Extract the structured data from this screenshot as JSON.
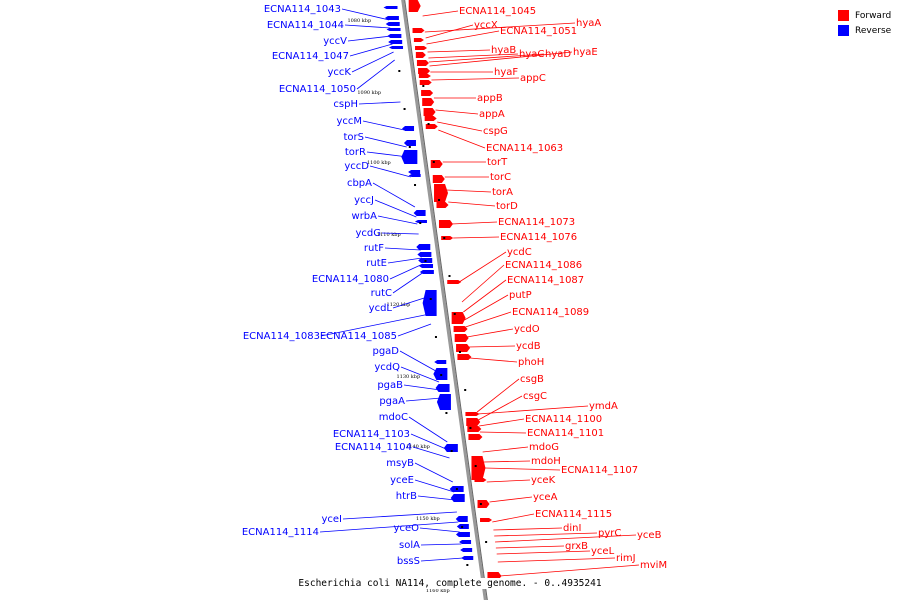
{
  "colors": {
    "forward": "#ff0000",
    "reverse": "#0000ff",
    "backbone": "#999999"
  },
  "legend": [
    {
      "label": "Forward",
      "color": "#ff0000"
    },
    {
      "label": "Reverse",
      "color": "#0000ff"
    }
  ],
  "caption": "Escherichia coli NA114, complete genome. - 0..4935241",
  "ticks": [
    "1080 kbp",
    "1090 kbp",
    "1100 kbp",
    "1110 kbp",
    "1120 kbp",
    "1130 kbp",
    "1140 kbp",
    "1150 kbp",
    "1160 kbp"
  ],
  "reverse_genes": [
    "ECNA114_1043",
    "ECNA114_1044",
    "yccV",
    "ECNA114_1047",
    "yccK",
    "ECNA114_1050",
    "cspH",
    "yccM",
    "torS",
    "torR",
    "yccD",
    "cbpA",
    "yccJ",
    "wrbA",
    "ycdG",
    "rutF",
    "rutE",
    "ECNA114_1080",
    "rutC",
    "ycdL",
    "ECNA114_1083",
    "ECNA114_1085",
    "pgaD",
    "ycdQ",
    "pgaB",
    "pgaA",
    "mdoC",
    "ECNA114_1103",
    "ECNA114_1104",
    "msyB",
    "yceE",
    "htrB",
    "yceI",
    "ECNA114_1114",
    "yceO",
    "solA",
    "bssS"
  ],
  "forward_genes": [
    "ECNA114_1045",
    "hyaA",
    "yccX",
    "ECNA114_1051",
    "hyaB",
    "hyaC",
    "hyaD",
    "hyaE",
    "hyaF",
    "appC",
    "appB",
    "appA",
    "cspG",
    "ECNA114_1063",
    "torT",
    "torC",
    "torA",
    "torD",
    "ECNA114_1073",
    "ECNA114_1076",
    "ycdC",
    "ECNA114_1086",
    "ECNA114_1087",
    "putP",
    "ECNA114_1089",
    "ycdO",
    "ycdB",
    "phoH",
    "csgB",
    "csgC",
    "ymdA",
    "ECNA114_1100",
    "ECNA114_1101",
    "mdoG",
    "mdoH",
    "ECNA114_1107",
    "yceK",
    "yceA",
    "ECNA114_1115",
    "dinI",
    "pyrC",
    "yceB",
    "grxB",
    "yceL",
    "rimJ",
    "mviM"
  ]
}
